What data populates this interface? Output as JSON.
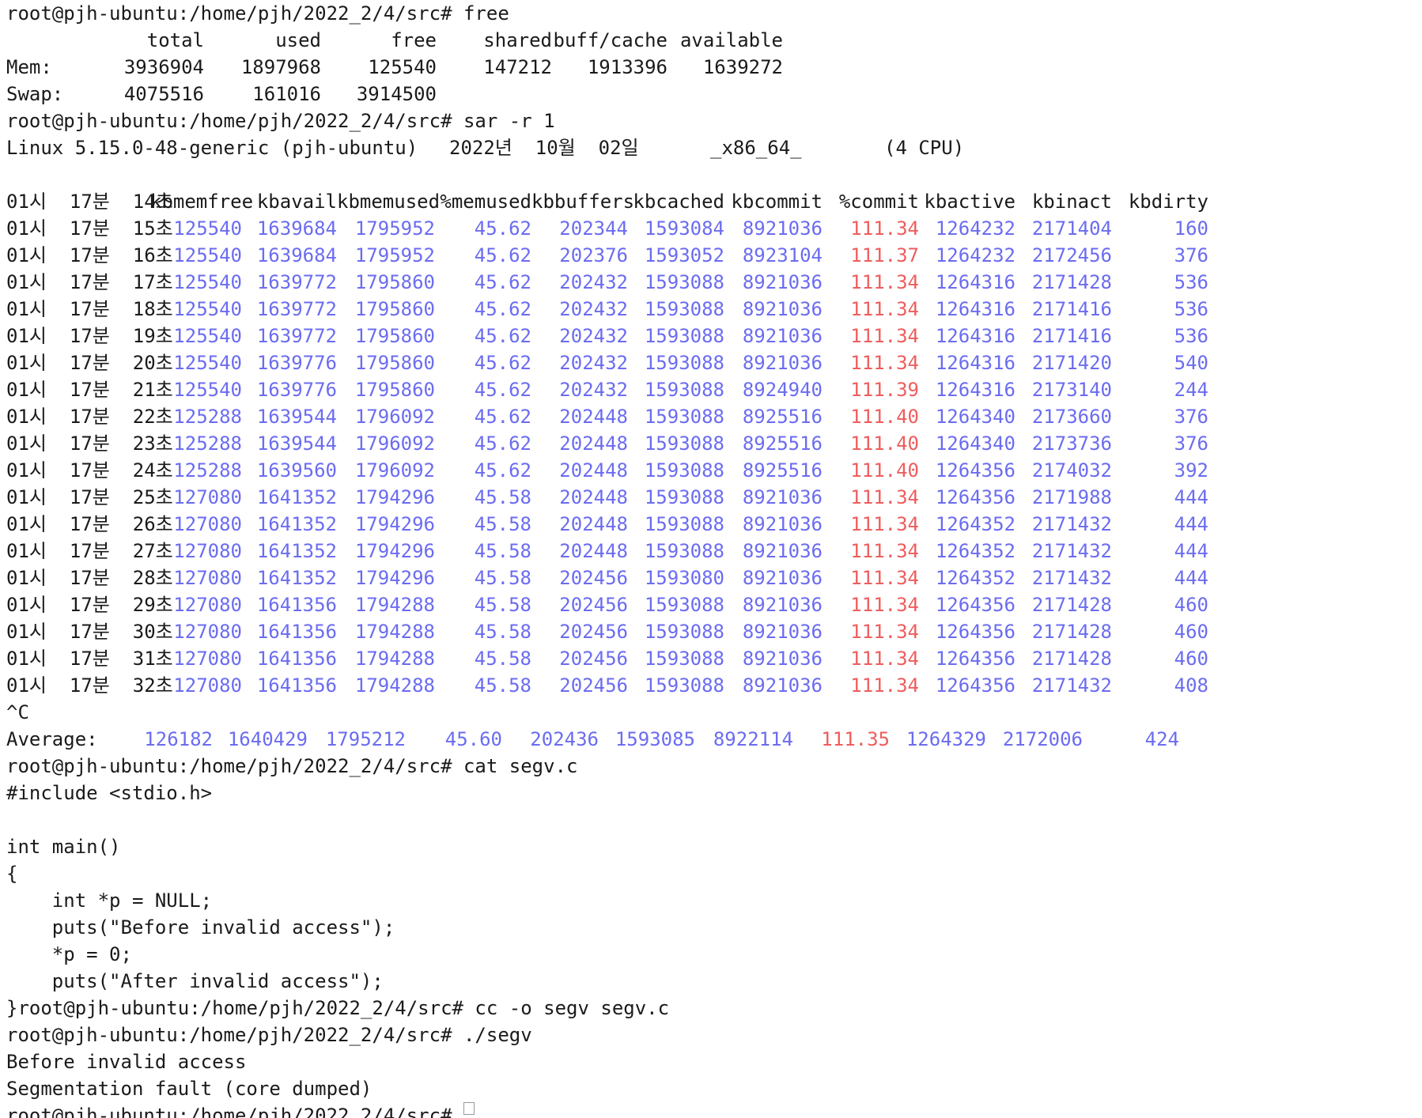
{
  "prompt": "root@pjh-ubuntu:/home/pjh/2022_2/4/src# ",
  "free_cmd": "free",
  "free": {
    "headers": [
      "total",
      "used",
      "free",
      "shared",
      "buff/cache",
      "available"
    ],
    "rows": [
      {
        "label": "Mem:",
        "values": [
          "3936904",
          "1897968",
          "125540",
          "147212",
          "1913396",
          "1639272"
        ]
      },
      {
        "label": "Swap:",
        "values": [
          "4075516",
          "161016",
          "3914500",
          "",
          "",
          ""
        ]
      }
    ]
  },
  "sar_cmd": "sar -r 1",
  "sysinfo": {
    "kernel": "Linux 5.15.0-48-generic (pjh-ubuntu)",
    "date": "2022년  10월  02일",
    "arch": "_x86_64_",
    "cpu": "(4 CPU)"
  },
  "sar": {
    "header_time": "01시  17분  14초",
    "headers": [
      "kbmemfree",
      "kbavail",
      "kbmemused",
      "%memused",
      "kbbuffers",
      "kbcached",
      "kbcommit",
      "%commit",
      "kbactive",
      "kbinact",
      "kbdirty"
    ],
    "rows": [
      {
        "time": "01시  17분  15초",
        "values": [
          "125540",
          "1639684",
          "1795952",
          "45.62",
          "202344",
          "1593084",
          "8921036",
          "111.34",
          "1264232",
          "2171404",
          "160"
        ]
      },
      {
        "time": "01시  17분  16초",
        "values": [
          "125540",
          "1639684",
          "1795952",
          "45.62",
          "202376",
          "1593052",
          "8923104",
          "111.37",
          "1264232",
          "2172456",
          "376"
        ]
      },
      {
        "time": "01시  17분  17초",
        "values": [
          "125540",
          "1639772",
          "1795860",
          "45.62",
          "202432",
          "1593088",
          "8921036",
          "111.34",
          "1264316",
          "2171428",
          "536"
        ]
      },
      {
        "time": "01시  17분  18초",
        "values": [
          "125540",
          "1639772",
          "1795860",
          "45.62",
          "202432",
          "1593088",
          "8921036",
          "111.34",
          "1264316",
          "2171416",
          "536"
        ]
      },
      {
        "time": "01시  17분  19초",
        "values": [
          "125540",
          "1639772",
          "1795860",
          "45.62",
          "202432",
          "1593088",
          "8921036",
          "111.34",
          "1264316",
          "2171416",
          "536"
        ]
      },
      {
        "time": "01시  17분  20초",
        "values": [
          "125540",
          "1639776",
          "1795860",
          "45.62",
          "202432",
          "1593088",
          "8921036",
          "111.34",
          "1264316",
          "2171420",
          "540"
        ]
      },
      {
        "time": "01시  17분  21초",
        "values": [
          "125540",
          "1639776",
          "1795860",
          "45.62",
          "202432",
          "1593088",
          "8924940",
          "111.39",
          "1264316",
          "2173140",
          "244"
        ]
      },
      {
        "time": "01시  17분  22초",
        "values": [
          "125288",
          "1639544",
          "1796092",
          "45.62",
          "202448",
          "1593088",
          "8925516",
          "111.40",
          "1264340",
          "2173660",
          "376"
        ]
      },
      {
        "time": "01시  17분  23초",
        "values": [
          "125288",
          "1639544",
          "1796092",
          "45.62",
          "202448",
          "1593088",
          "8925516",
          "111.40",
          "1264340",
          "2173736",
          "376"
        ]
      },
      {
        "time": "01시  17분  24초",
        "values": [
          "125288",
          "1639560",
          "1796092",
          "45.62",
          "202448",
          "1593088",
          "8925516",
          "111.40",
          "1264356",
          "2174032",
          "392"
        ]
      },
      {
        "time": "01시  17분  25초",
        "values": [
          "127080",
          "1641352",
          "1794296",
          "45.58",
          "202448",
          "1593088",
          "8921036",
          "111.34",
          "1264356",
          "2171988",
          "444"
        ]
      },
      {
        "time": "01시  17분  26초",
        "values": [
          "127080",
          "1641352",
          "1794296",
          "45.58",
          "202448",
          "1593088",
          "8921036",
          "111.34",
          "1264352",
          "2171432",
          "444"
        ]
      },
      {
        "time": "01시  17분  27초",
        "values": [
          "127080",
          "1641352",
          "1794296",
          "45.58",
          "202448",
          "1593088",
          "8921036",
          "111.34",
          "1264352",
          "2171432",
          "444"
        ]
      },
      {
        "time": "01시  17분  28초",
        "values": [
          "127080",
          "1641352",
          "1794296",
          "45.58",
          "202456",
          "1593080",
          "8921036",
          "111.34",
          "1264352",
          "2171432",
          "444"
        ]
      },
      {
        "time": "01시  17분  29초",
        "values": [
          "127080",
          "1641356",
          "1794288",
          "45.58",
          "202456",
          "1593088",
          "8921036",
          "111.34",
          "1264356",
          "2171428",
          "460"
        ]
      },
      {
        "time": "01시  17분  30초",
        "values": [
          "127080",
          "1641356",
          "1794288",
          "45.58",
          "202456",
          "1593088",
          "8921036",
          "111.34",
          "1264356",
          "2171428",
          "460"
        ]
      },
      {
        "time": "01시  17분  31초",
        "values": [
          "127080",
          "1641356",
          "1794288",
          "45.58",
          "202456",
          "1593088",
          "8921036",
          "111.34",
          "1264356",
          "2171428",
          "460"
        ]
      },
      {
        "time": "01시  17분  32초",
        "values": [
          "127080",
          "1641356",
          "1794288",
          "45.58",
          "202456",
          "1593088",
          "8921036",
          "111.34",
          "1264356",
          "2171432",
          "408"
        ]
      }
    ],
    "interrupt": "^C",
    "average_label": "Average:",
    "average": [
      "126182",
      "1640429",
      "1795212",
      "45.60",
      "202436",
      "1593085",
      "8922114",
      "111.35",
      "1264329",
      "2172006",
      "424"
    ]
  },
  "cat_cmd": "cat segv.c",
  "source_lines": [
    "#include <stdio.h>",
    "",
    "int main()",
    "{",
    "    int *p = NULL;",
    "    puts(\"Before invalid access\");",
    "    *p = 0;",
    "    puts(\"After invalid access\");"
  ],
  "source_close": "}",
  "cc_cmd": "cc -o segv segv.c",
  "run_cmd": "./segv",
  "output_lines": [
    "Before invalid access",
    "Segmentation fault (core dumped)"
  ],
  "colors": {
    "value": "#6b6cf0",
    "commit": "#ee5d5d",
    "text": "#1a1a1a",
    "background": "#ffffff"
  }
}
